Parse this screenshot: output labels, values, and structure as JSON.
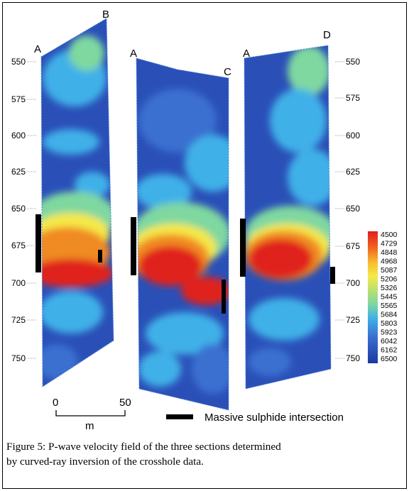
{
  "figure": {
    "sections": [
      {
        "start_label": "A",
        "end_label": "B"
      },
      {
        "start_label": "A",
        "end_label": "C"
      },
      {
        "start_label": "A",
        "end_label": "D"
      }
    ],
    "depth_ticks": [
      "550",
      "575",
      "600",
      "625",
      "650",
      "675",
      "700",
      "725",
      "750"
    ],
    "colorbar_labels": [
      "4500",
      "4729",
      "4848",
      "4968",
      "5087",
      "5206",
      "5326",
      "5445",
      "5565",
      "5684",
      "5803",
      "5923",
      "6042",
      "6162",
      "6500"
    ],
    "colors": {
      "very_high": "#1a3aa0",
      "high": "#3a6fd0",
      "mid_high": "#3fb0e8",
      "mid": "#7fd8a0",
      "low_mid": "#f5e84a",
      "low": "#f08a20",
      "very_low": "#e0201a",
      "sulphide": "#000000"
    },
    "scale": {
      "min_label": "0",
      "max_label": "50",
      "unit": "m"
    },
    "legend": {
      "text": "Massive sulphide intersection"
    }
  },
  "caption": {
    "line1": "Figure 5: P-wave velocity field of the three sections determined",
    "line2": "by curved-ray inversion of the crosshole data."
  }
}
